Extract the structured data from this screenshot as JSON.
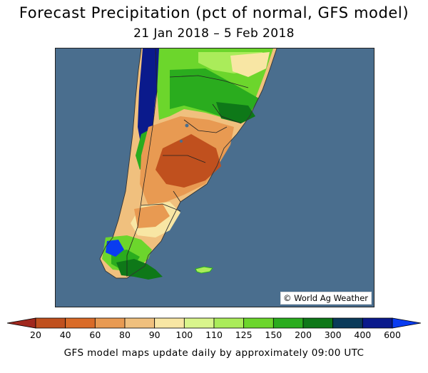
{
  "title": "Forecast Precipitation (pct of normal, GFS model)",
  "subtitle": "21 Jan 2018 – 5 Feb 2018",
  "map": {
    "region": "Argentina, Chile, Uruguay and southern Brazil",
    "credit": "© World Ag Weather",
    "ocean_color": "#4a6e8e"
  },
  "legend": {
    "bins": [
      {
        "label": "<20",
        "color": "#a0281e"
      },
      {
        "label": "20-40",
        "color": "#c0501e"
      },
      {
        "label": "40-60",
        "color": "#d96b28"
      },
      {
        "label": "60-80",
        "color": "#e89a52"
      },
      {
        "label": "80-90",
        "color": "#f0c07e"
      },
      {
        "label": "90-100",
        "color": "#f8e6a4"
      },
      {
        "label": "100-110",
        "color": "#d9f58c"
      },
      {
        "label": "110-125",
        "color": "#aaec5a"
      },
      {
        "label": "125-150",
        "color": "#6cd62c"
      },
      {
        "label": "150-200",
        "color": "#2aac1e"
      },
      {
        "label": "200-300",
        "color": "#0e7818"
      },
      {
        "label": "300-400",
        "color": "#0a3a5a"
      },
      {
        "label": "400-600",
        "color": "#0a1a8c"
      },
      {
        "label": ">600",
        "color": "#0a3cf0"
      }
    ],
    "ticks": [
      "20",
      "40",
      "60",
      "80",
      "90",
      "100",
      "110",
      "125",
      "150",
      "200",
      "300",
      "400",
      "600"
    ]
  },
  "footer": "GFS model maps update daily by approximately 09:00 UTC"
}
